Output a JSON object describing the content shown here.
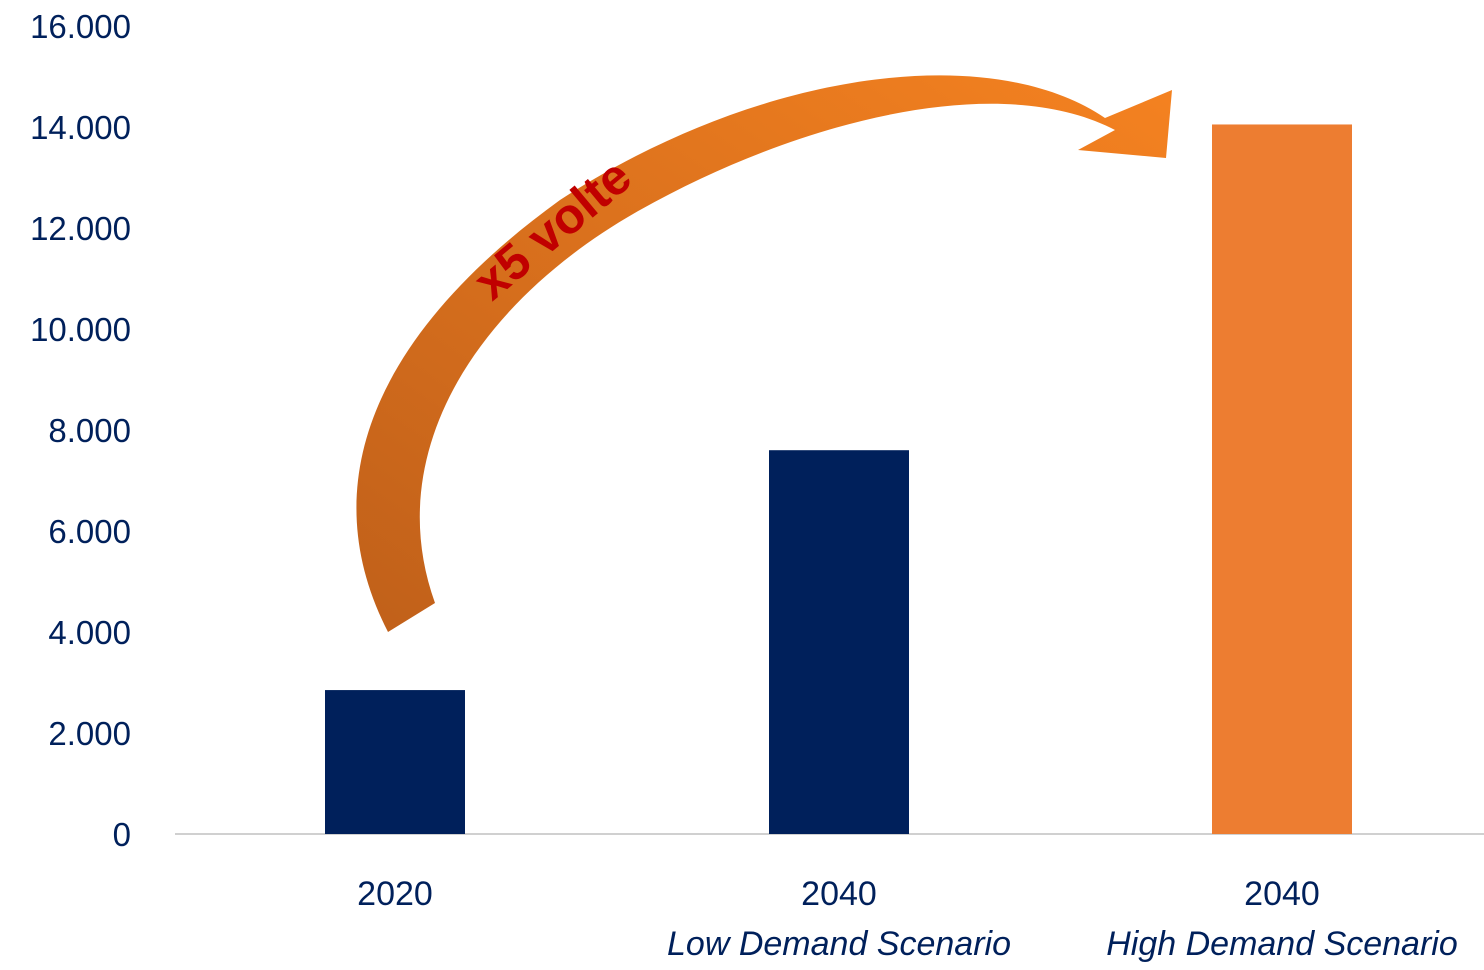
{
  "chart_data": {
    "type": "bar",
    "categories": [
      {
        "line1": "2020",
        "line2": ""
      },
      {
        "line1": "2040",
        "line2": "Low Demand Scenario"
      },
      {
        "line1": "2040",
        "line2": "High Demand Scenario"
      }
    ],
    "values": [
      2850,
      7600,
      14050
    ],
    "bar_colors": [
      "#00205b",
      "#00205b",
      "#ed7d31"
    ],
    "ylim": [
      0,
      16000
    ],
    "yticks": [
      "0",
      "2.000",
      "4.000",
      "6.000",
      "8.000",
      "10.000",
      "12.000",
      "14.000",
      "16.000"
    ],
    "ytick_values": [
      0,
      2000,
      4000,
      6000,
      8000,
      10000,
      12000,
      14000,
      16000
    ],
    "title": "",
    "xlabel": "",
    "ylabel": "",
    "grid": false,
    "legend": "none",
    "annotation": {
      "text": "x5 volte",
      "color": "#c00000",
      "arrow": "curved-arrow",
      "arrow_gradient": [
        "#c0601a",
        "#f58220"
      ]
    },
    "colors": {
      "axis_text": "#00205b",
      "axis_line": "#d0d0d0"
    }
  }
}
